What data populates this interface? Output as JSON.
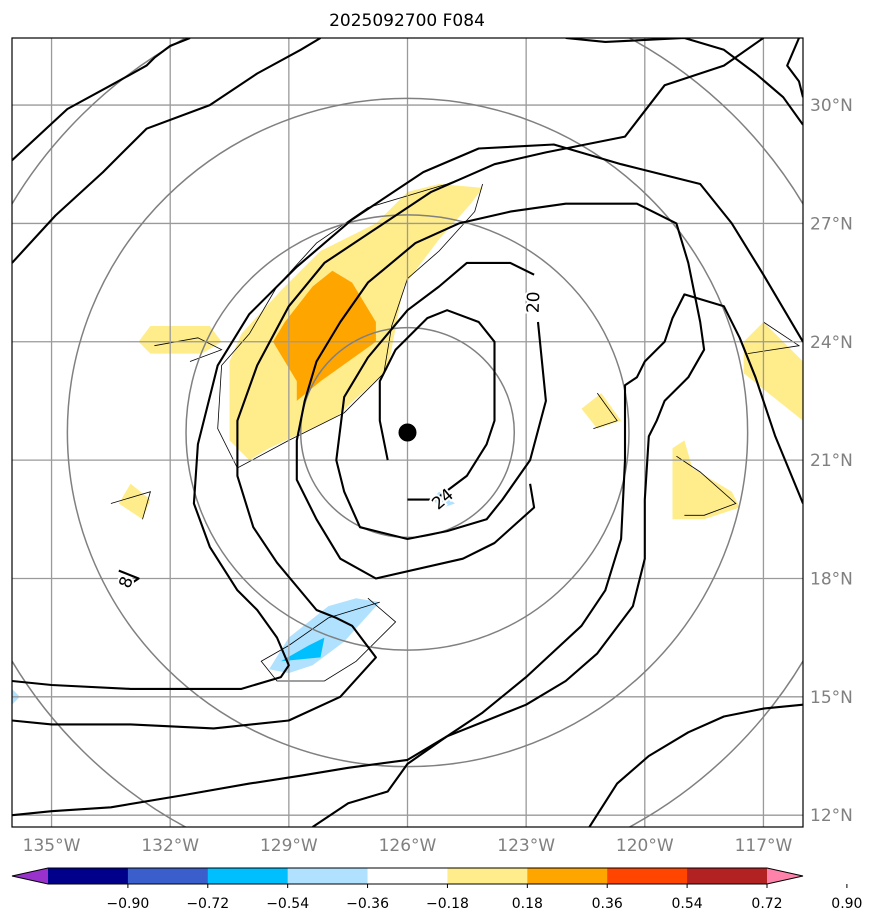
{
  "chart_data": {
    "type": "heatmap",
    "title": "2025092700 F084",
    "x_ticks": [
      -135,
      -132,
      -129,
      -126,
      -123,
      -120,
      -117
    ],
    "x_tick_labels": [
      "135°W",
      "132°W",
      "129°W",
      "126°W",
      "123°W",
      "120°W",
      "117°W"
    ],
    "y_ticks": [
      12,
      15,
      18,
      21,
      24,
      27,
      30
    ],
    "y_tick_labels": [
      "12°N",
      "15°N",
      "18°N",
      "21°N",
      "24°N",
      "27°N",
      "30°N"
    ],
    "xlim": [
      -136,
      -116
    ],
    "ylim": [
      11.7,
      31.7
    ],
    "center": {
      "lon": -126,
      "lat": 21.7
    },
    "range_rings_deg": [
      2.7,
      5.6,
      8.6,
      11.6
    ],
    "contour_labels": [
      {
        "text": "20",
        "lon": -122.8,
        "lat": 25.0,
        "rotation": -88
      },
      {
        "text": "24",
        "lon": -125.1,
        "lat": 20.0,
        "rotation": -40
      },
      {
        "text": "8",
        "lon": -133.1,
        "lat": 17.9,
        "rotation": -70
      }
    ],
    "colorbar": {
      "boundaries": [
        -0.9,
        -0.72,
        -0.54,
        -0.36,
        -0.18,
        0.18,
        0.36,
        0.54,
        0.72,
        0.9
      ],
      "labels": [
        "−0.90",
        "−0.72",
        "−0.54",
        "−0.36",
        "−0.18",
        "0.18",
        "0.36",
        "0.54",
        "0.72",
        "0.90"
      ],
      "colors": [
        "#9932cc",
        "#00008b",
        "#3a5fcd",
        "#00bfff",
        "#b0e2ff",
        "#ffffff",
        "#ffec8b",
        "#ffa500",
        "#ff4500",
        "#b22222",
        "#ff82ab"
      ],
      "extend": "both"
    },
    "fills": [
      {
        "level": 0.18,
        "color": "#ffec8b",
        "lonlat": [
          [
            -126.8,
            27.0
          ],
          [
            -126.0,
            27.8
          ],
          [
            -125.2,
            28.0
          ],
          [
            -124.1,
            27.9
          ],
          [
            -124.4,
            27.5
          ],
          [
            -125.2,
            26.6
          ],
          [
            -126.1,
            25.4
          ],
          [
            -126.5,
            23.3
          ],
          [
            -127.8,
            22.1
          ],
          [
            -129.5,
            21.3
          ],
          [
            -130.0,
            21.0
          ],
          [
            -130.5,
            21.5
          ],
          [
            -130.5,
            23.5
          ],
          [
            -130.2,
            24.2
          ],
          [
            -129.2,
            25.3
          ],
          [
            -128.2,
            26.3
          ]
        ]
      },
      {
        "level": 0.36,
        "color": "#ffa500",
        "lonlat": [
          [
            -128.8,
            23.0
          ],
          [
            -128.8,
            22.5
          ],
          [
            -128.2,
            23.0
          ],
          [
            -127.5,
            23.5
          ],
          [
            -126.8,
            24.0
          ],
          [
            -126.8,
            24.5
          ],
          [
            -127.4,
            25.5
          ],
          [
            -127.9,
            25.8
          ],
          [
            -128.4,
            25.4
          ],
          [
            -129.1,
            24.5
          ],
          [
            -129.4,
            24.0
          ]
        ]
      },
      {
        "level": 0.18,
        "color": "#ffec8b",
        "lonlat": [
          [
            -132.5,
            24.4
          ],
          [
            -131.0,
            24.4
          ],
          [
            -130.7,
            24.0
          ],
          [
            -131.2,
            23.7
          ],
          [
            -132.5,
            23.7
          ],
          [
            -132.8,
            24.0
          ]
        ]
      },
      {
        "level": 0.18,
        "color": "#ffec8b",
        "lonlat": [
          [
            -133.0,
            20.4
          ],
          [
            -132.5,
            20.0
          ],
          [
            -132.7,
            19.5
          ],
          [
            -133.3,
            19.9
          ]
        ]
      },
      {
        "level": 0.18,
        "color": "#ffec8b",
        "lonlat": [
          [
            -121.1,
            22.7
          ],
          [
            -120.6,
            22.0
          ],
          [
            -121.2,
            21.8
          ],
          [
            -121.6,
            22.3
          ]
        ]
      },
      {
        "level": 0.18,
        "color": "#ffec8b",
        "lonlat": [
          [
            -118.8,
            20.8
          ],
          [
            -117.8,
            20.2
          ],
          [
            -117.6,
            19.8
          ],
          [
            -118.5,
            19.5
          ],
          [
            -119.3,
            19.5
          ],
          [
            -119.3,
            21.3
          ],
          [
            -119.0,
            21.5
          ]
        ]
      },
      {
        "level": 0.18,
        "color": "#ffec8b",
        "lonlat": [
          [
            -117.0,
            24.5
          ],
          [
            -116.0,
            23.5
          ],
          [
            -116.0,
            22.0
          ],
          [
            -117.0,
            22.8
          ],
          [
            -117.5,
            23.2
          ],
          [
            -117.5,
            24.0
          ]
        ]
      },
      {
        "level": -0.18,
        "color": "#b0e2ff",
        "lonlat": [
          [
            -126.7,
            17.4
          ],
          [
            -127.6,
            16.4
          ],
          [
            -128.4,
            15.8
          ],
          [
            -129.0,
            15.6
          ],
          [
            -129.5,
            15.7
          ],
          [
            -129.0,
            16.5
          ],
          [
            -128.0,
            17.3
          ],
          [
            -127.3,
            17.5
          ]
        ]
      },
      {
        "level": -0.36,
        "color": "#00bfff",
        "lonlat": [
          [
            -128.1,
            16.5
          ],
          [
            -128.2,
            16.0
          ],
          [
            -129.2,
            15.9
          ],
          [
            -128.5,
            16.3
          ]
        ]
      },
      {
        "level": -0.18,
        "color": "#b0e2ff",
        "lonlat": [
          [
            -125.2,
            20.2
          ],
          [
            -124.8,
            19.9
          ],
          [
            -125.1,
            19.8
          ],
          [
            -125.4,
            20.0
          ]
        ]
      },
      {
        "level": -0.18,
        "color": "#b0e2ff",
        "lonlat": [
          [
            -136.0,
            15.2
          ],
          [
            -135.8,
            15.0
          ],
          [
            -136.0,
            14.8
          ]
        ]
      }
    ],
    "contours": [
      [
        [
          -126.0,
          20.0
        ],
        [
          -125.3,
          20.0
        ],
        [
          -124.5,
          20.6
        ],
        [
          -124.0,
          21.4
        ],
        [
          -123.8,
          22.0
        ],
        [
          -123.8,
          24.0
        ],
        [
          -124.2,
          24.5
        ],
        [
          -125.0,
          24.8
        ],
        [
          -125.5,
          24.6
        ],
        [
          -126.3,
          23.8
        ],
        [
          -126.7,
          23.0
        ],
        [
          -126.7,
          22.0
        ],
        [
          -126.5,
          21.0
        ]
      ],
      [
        [
          -122.8,
          25.7
        ],
        [
          -123.4,
          26.0
        ],
        [
          -124.5,
          26.0
        ],
        [
          -125.2,
          25.4
        ],
        [
          -126.0,
          24.8
        ],
        [
          -127.0,
          23.6
        ],
        [
          -127.6,
          22.6
        ],
        [
          -127.8,
          21.0
        ],
        [
          -127.6,
          20.2
        ],
        [
          -127.2,
          19.3
        ],
        [
          -126.0,
          19.0
        ],
        [
          -125.0,
          19.2
        ],
        [
          -124.0,
          19.5
        ],
        [
          -123.6,
          20.0
        ],
        [
          -122.9,
          21.0
        ],
        [
          -122.5,
          22.5
        ],
        [
          -122.7,
          24.5
        ]
      ],
      [
        [
          -122.9,
          20.4
        ],
        [
          -122.8,
          19.8
        ],
        [
          -123.8,
          18.9
        ],
        [
          -124.6,
          18.5
        ],
        [
          -126.8,
          18.0
        ],
        [
          -127.7,
          18.5
        ],
        [
          -128.3,
          19.5
        ],
        [
          -128.8,
          20.5
        ],
        [
          -128.8,
          21.5
        ],
        [
          -128.6,
          22.5
        ],
        [
          -128.3,
          23.5
        ],
        [
          -127.7,
          24.5
        ],
        [
          -127.0,
          25.5
        ],
        [
          -125.8,
          26.5
        ],
        [
          -124.7,
          27.0
        ],
        [
          -123.4,
          27.3
        ],
        [
          -122.0,
          27.5
        ],
        [
          -120.2,
          27.5
        ],
        [
          -119.2,
          27.0
        ],
        [
          -118.9,
          26.0
        ],
        [
          -118.6,
          24.5
        ],
        [
          -118.5,
          23.8
        ],
        [
          -118.9,
          23.1
        ],
        [
          -119.5,
          22.5
        ],
        [
          -119.7,
          22.0
        ],
        [
          -119.9,
          21.6
        ],
        [
          -120.0,
          20.0
        ],
        [
          -120.0,
          18.5
        ],
        [
          -120.3,
          17.3
        ],
        [
          -121.2,
          16.1
        ],
        [
          -122.0,
          15.4
        ],
        [
          -123.0,
          14.8
        ],
        [
          -124.0,
          14.4
        ],
        [
          -125.0,
          14.0
        ],
        [
          -126.0,
          13.4
        ],
        [
          -127.5,
          13.2
        ],
        [
          -128.7,
          13.0
        ],
        [
          -130.0,
          12.8
        ],
        [
          -131.7,
          12.5
        ],
        [
          -133.5,
          12.2
        ],
        [
          -135.0,
          12.1
        ],
        [
          -136.0,
          12.0
        ]
      ],
      [
        [
          -117.0,
          31.7
        ],
        [
          -118.0,
          31.0
        ],
        [
          -119.5,
          30.5
        ],
        [
          -120.5,
          29.2
        ],
        [
          -121.5,
          29.0
        ],
        [
          -122.5,
          28.8
        ],
        [
          -123.8,
          28.5
        ],
        [
          -125.4,
          27.8
        ],
        [
          -126.9,
          26.8
        ],
        [
          -128.1,
          26.0
        ],
        [
          -129.0,
          24.9
        ],
        [
          -129.8,
          23.4
        ],
        [
          -130.3,
          22.0
        ],
        [
          -130.3,
          20.6
        ],
        [
          -129.9,
          19.3
        ],
        [
          -129.3,
          18.4
        ],
        [
          -128.3,
          17.2
        ],
        [
          -127.8,
          17.0
        ],
        [
          -127.4,
          16.8
        ],
        [
          -126.8,
          16.0
        ],
        [
          -127.7,
          15.0
        ],
        [
          -129.0,
          14.4
        ],
        [
          -130.9,
          14.2
        ],
        [
          -133.0,
          14.3
        ],
        [
          -135.0,
          14.3
        ],
        [
          -136.0,
          14.4
        ]
      ],
      [
        [
          -136.0,
          28.6
        ],
        [
          -134.6,
          29.9
        ],
        [
          -133.5,
          30.5
        ],
        [
          -132.6,
          31.0
        ],
        [
          -132.4,
          31.2
        ],
        [
          -132.0,
          31.5
        ],
        [
          -131.5,
          31.7
        ]
      ],
      [
        [
          -116.0,
          24.0
        ],
        [
          -117.0,
          25.7
        ],
        [
          -117.8,
          27.0
        ],
        [
          -118.6,
          28.0
        ],
        [
          -120.6,
          28.5
        ],
        [
          -122.3,
          29.0
        ],
        [
          -124.2,
          28.9
        ],
        [
          -125.6,
          28.3
        ],
        [
          -127.4,
          27.1
        ],
        [
          -128.8,
          25.9
        ],
        [
          -130.0,
          24.7
        ],
        [
          -130.8,
          23.4
        ],
        [
          -131.3,
          21.4
        ],
        [
          -131.4,
          19.9
        ],
        [
          -131.0,
          18.8
        ],
        [
          -130.3,
          17.7
        ],
        [
          -129.8,
          17.2
        ],
        [
          -129.3,
          16.5
        ],
        [
          -129.0,
          15.8
        ],
        [
          -129.2,
          15.5
        ],
        [
          -130.2,
          15.2
        ],
        [
          -131.7,
          15.2
        ],
        [
          -133.0,
          15.2
        ],
        [
          -135.0,
          15.3
        ],
        [
          -136.0,
          15.4
        ]
      ],
      [
        [
          -116.0,
          14.8
        ],
        [
          -117.0,
          14.7
        ],
        [
          -118.0,
          14.5
        ],
        [
          -118.9,
          14.1
        ],
        [
          -119.9,
          13.5
        ],
        [
          -120.7,
          12.8
        ],
        [
          -121.4,
          11.7
        ]
      ],
      [
        [
          -136.0,
          26.0
        ],
        [
          -134.9,
          27.2
        ],
        [
          -133.7,
          28.3
        ],
        [
          -133.2,
          28.8
        ],
        [
          -132.6,
          29.4
        ],
        [
          -131.0,
          30.0
        ],
        [
          -129.8,
          30.8
        ],
        [
          -128.7,
          31.4
        ],
        [
          -128.2,
          31.7
        ]
      ],
      [
        [
          -122.0,
          31.7
        ],
        [
          -121.0,
          31.6
        ],
        [
          -119.0,
          31.7
        ],
        [
          -118.0,
          31.4
        ],
        [
          -117.2,
          30.8
        ],
        [
          -116.5,
          30.2
        ],
        [
          -116.0,
          29.5
        ]
      ],
      [
        [
          -116.0,
          19.9
        ],
        [
          -116.7,
          21.6
        ],
        [
          -117.2,
          23.1
        ],
        [
          -117.6,
          24.1
        ],
        [
          -118.0,
          24.9
        ],
        [
          -119.0,
          25.2
        ],
        [
          -119.3,
          24.6
        ],
        [
          -119.5,
          24.0
        ],
        [
          -120.0,
          23.5
        ],
        [
          -120.2,
          23.1
        ],
        [
          -120.5,
          22.9
        ],
        [
          -120.5,
          21.0
        ],
        [
          -120.6,
          19.0
        ],
        [
          -121.0,
          17.7
        ],
        [
          -121.6,
          16.8
        ],
        [
          -123.0,
          15.5
        ],
        [
          -124.1,
          14.6
        ],
        [
          -125.0,
          14.0
        ],
        [
          -126.0,
          13.3
        ],
        [
          -126.5,
          12.6
        ],
        [
          -127.5,
          12.3
        ],
        [
          -128.4,
          11.7
        ]
      ],
      [
        [
          -133.3,
          18.2
        ],
        [
          -132.8,
          18.0
        ],
        [
          -133.1,
          17.8
        ]
      ],
      [
        [
          -116.1,
          31.7
        ],
        [
          -116.4,
          31.0
        ],
        [
          -116.1,
          30.6
        ],
        [
          -116.0,
          30.2
        ]
      ]
    ],
    "outlines": [
      [
        [
          -124.1,
          28.0
        ],
        [
          -124.3,
          27.3
        ],
        [
          -125.2,
          26.3
        ],
        [
          -126.0,
          25.6
        ],
        [
          -126.4,
          24.4
        ],
        [
          -126.6,
          23.2
        ],
        [
          -127.6,
          22.2
        ],
        [
          -129.0,
          21.5
        ],
        [
          -130.3,
          20.8
        ],
        [
          -130.8,
          21.8
        ],
        [
          -130.7,
          23.4
        ],
        [
          -130.0,
          24.2
        ],
        [
          -129.3,
          25.4
        ],
        [
          -128.3,
          26.5
        ],
        [
          -127.0,
          27.4
        ],
        [
          -125.0,
          28.0
        ],
        [
          -124.5,
          28.2
        ]
      ],
      [
        [
          -131.5,
          23.5
        ],
        [
          -130.7,
          23.8
        ],
        [
          -131.3,
          24.1
        ],
        [
          -132.4,
          23.9
        ]
      ],
      [
        [
          -133.5,
          19.9
        ],
        [
          -132.5,
          20.2
        ],
        [
          -132.7,
          19.5
        ]
      ],
      [
        [
          -121.2,
          22.7
        ],
        [
          -120.7,
          22.0
        ],
        [
          -121.3,
          21.8
        ]
      ],
      [
        [
          -119.2,
          21.1
        ],
        [
          -118.6,
          20.7
        ],
        [
          -117.7,
          19.9
        ],
        [
          -118.5,
          19.6
        ],
        [
          -119.0,
          19.6
        ]
      ],
      [
        [
          -117.0,
          24.5
        ],
        [
          -116.1,
          23.9
        ],
        [
          -117.4,
          23.7
        ]
      ],
      [
        [
          -126.7,
          17.4
        ],
        [
          -128.0,
          17.0
        ],
        [
          -129.0,
          16.3
        ],
        [
          -129.7,
          15.9
        ],
        [
          -129.3,
          15.4
        ],
        [
          -128.1,
          15.4
        ],
        [
          -127.3,
          15.9
        ],
        [
          -126.3,
          16.9
        ],
        [
          -127.0,
          17.5
        ]
      ]
    ]
  }
}
